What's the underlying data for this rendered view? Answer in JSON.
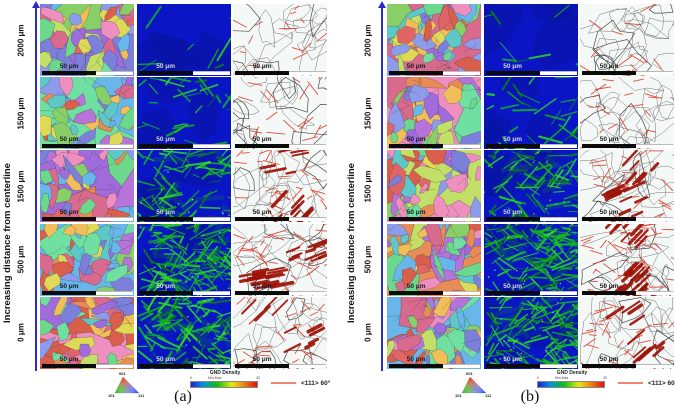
{
  "figure": {
    "axis_label": "Increasing distance from centerline",
    "row_labels": [
      "2000 μm",
      "1500 μm",
      "1500 μm",
      "500 μm",
      "0 μm"
    ],
    "scale_bar_label": "50 μm",
    "panels": [
      {
        "label": "(a)"
      },
      {
        "label": "(b)"
      }
    ],
    "column_types": [
      "ipf-orientation-map",
      "gnd-density-map",
      "boundary-map"
    ]
  },
  "legends": {
    "ipf_triangle": {
      "corner_top": "001",
      "corner_bottom_left": "101",
      "corner_bottom_right": "111"
    },
    "gnd": {
      "title": "GND Density",
      "sub": "Min-Max",
      "min": "0",
      "max": "20"
    },
    "twin_boundary": {
      "label": "<111> 60°"
    }
  },
  "colors": {
    "arrow_blue": "#2a2ac8",
    "gnd_background": "#0a16c6",
    "gnd_green": "#14bb1a",
    "twin_red": "#df3a28",
    "dark_red": "#9c1005"
  },
  "render_hints": {
    "gnd_green_streaks_by_row": [
      8,
      30,
      70,
      140,
      120
    ],
    "red_segments_by_row": [
      14,
      20,
      26,
      40,
      28
    ],
    "dark_red_patches_by_row": [
      0,
      0,
      16,
      26,
      10
    ]
  }
}
